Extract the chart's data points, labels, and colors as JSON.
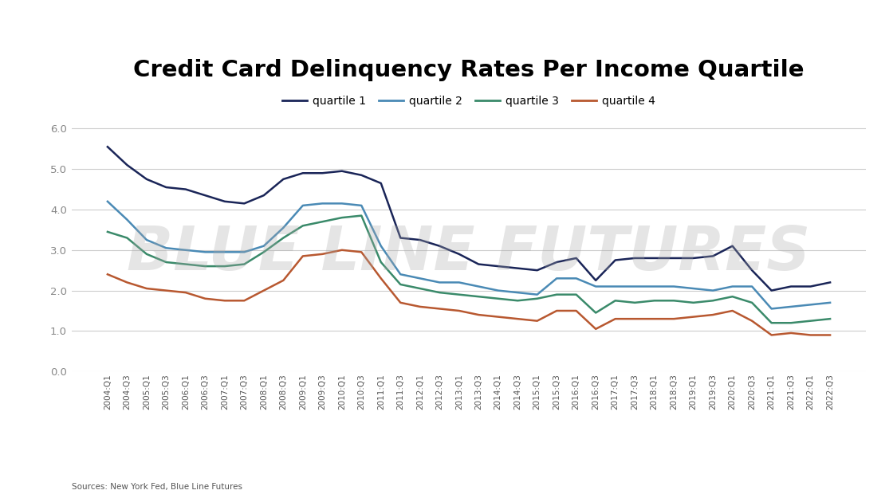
{
  "title": "Credit Card Delinquency Rates Per Income Quartile",
  "source_text": "Sources: New York Fed, Blue Line Futures",
  "watermark": "BLUE LINE FUTURES",
  "legend_labels": [
    "quartile 1",
    "quartile 2",
    "quartile 3",
    "quartile 4"
  ],
  "colors": [
    "#1a2558",
    "#4a8ab5",
    "#3a8a6a",
    "#b85830"
  ],
  "ylim": [
    0.0,
    6.2
  ],
  "yticks": [
    0.0,
    1.0,
    2.0,
    3.0,
    4.0,
    5.0,
    6.0
  ],
  "x_labels": [
    "2004:Q1",
    "2004:Q3",
    "2005:Q1",
    "2005:Q3",
    "2006:Q1",
    "2006:Q3",
    "2007:Q1",
    "2007:Q3",
    "2008:Q1",
    "2008:Q3",
    "2009:Q1",
    "2009:Q3",
    "2010:Q1",
    "2010:Q3",
    "2011:Q1",
    "2011:Q3",
    "2012:Q1",
    "2012:Q3",
    "2013:Q1",
    "2013:Q3",
    "2014:Q1",
    "2014:Q3",
    "2015:Q1",
    "2015:Q3",
    "2016:Q1",
    "2016:Q3",
    "2017:Q1",
    "2017:Q3",
    "2018:Q1",
    "2018:Q3",
    "2019:Q1",
    "2019:Q3",
    "2020:Q1",
    "2020:Q3",
    "2021:Q1",
    "2021:Q3",
    "2022:Q1",
    "2022:Q3"
  ],
  "quartile1": [
    5.55,
    5.1,
    4.75,
    4.55,
    4.5,
    4.35,
    4.2,
    4.15,
    4.35,
    4.75,
    4.9,
    4.9,
    4.95,
    4.85,
    4.65,
    3.3,
    3.25,
    3.1,
    2.9,
    2.65,
    2.6,
    2.55,
    2.5,
    2.7,
    2.8,
    2.25,
    2.75,
    2.8,
    2.8,
    2.8,
    2.8,
    2.85,
    3.1,
    2.5,
    2.0,
    2.1,
    2.1,
    2.2
  ],
  "quartile2": [
    4.2,
    3.75,
    3.25,
    3.05,
    3.0,
    2.95,
    2.95,
    2.95,
    3.1,
    3.55,
    4.1,
    4.15,
    4.15,
    4.1,
    3.1,
    2.4,
    2.3,
    2.2,
    2.2,
    2.1,
    2.0,
    1.95,
    1.9,
    2.3,
    2.3,
    2.1,
    2.1,
    2.1,
    2.1,
    2.1,
    2.05,
    2.0,
    2.1,
    2.1,
    1.55,
    1.6,
    1.65,
    1.7
  ],
  "quartile3": [
    3.45,
    3.3,
    2.9,
    2.7,
    2.65,
    2.6,
    2.6,
    2.65,
    2.95,
    3.3,
    3.6,
    3.7,
    3.8,
    3.85,
    2.7,
    2.15,
    2.05,
    1.95,
    1.9,
    1.85,
    1.8,
    1.75,
    1.8,
    1.9,
    1.9,
    1.45,
    1.75,
    1.7,
    1.75,
    1.75,
    1.7,
    1.75,
    1.85,
    1.7,
    1.2,
    1.2,
    1.25,
    1.3
  ],
  "quartile4": [
    2.4,
    2.2,
    2.05,
    2.0,
    1.95,
    1.8,
    1.75,
    1.75,
    2.0,
    2.25,
    2.85,
    2.9,
    3.0,
    2.95,
    2.3,
    1.7,
    1.6,
    1.55,
    1.5,
    1.4,
    1.35,
    1.3,
    1.25,
    1.5,
    1.5,
    1.05,
    1.3,
    1.3,
    1.3,
    1.3,
    1.35,
    1.4,
    1.5,
    1.25,
    0.9,
    0.95,
    0.9,
    0.9
  ]
}
